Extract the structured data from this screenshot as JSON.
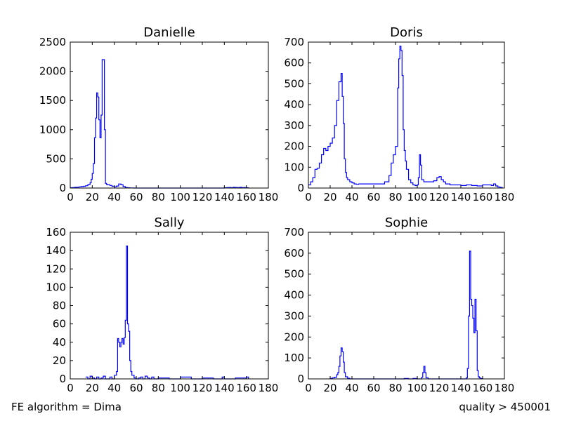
{
  "footer": {
    "left": "FE algorithm = Dima",
    "right": "quality > 450001"
  },
  "chart_data": [
    {
      "type": "line",
      "drawstyle": "steps",
      "color": "#0000ff",
      "title": "Danielle",
      "xlim": [
        0,
        180
      ],
      "ylim": [
        0,
        2500
      ],
      "xticks": [
        0,
        20,
        40,
        60,
        80,
        100,
        120,
        140,
        160,
        180
      ],
      "yticks": [
        0,
        500,
        1000,
        1500,
        2000,
        2500
      ],
      "x": [
        0,
        2,
        4,
        6,
        8,
        10,
        12,
        14,
        16,
        18,
        19,
        20,
        21,
        22,
        23,
        24,
        25,
        26,
        27,
        28,
        29,
        30,
        31,
        32,
        33,
        34,
        36,
        38,
        40,
        42,
        44,
        46,
        48,
        50,
        52,
        54,
        56,
        58,
        60,
        140,
        142,
        144,
        146,
        148,
        150,
        152,
        154,
        156,
        158,
        160,
        162
      ],
      "y": [
        5,
        8,
        12,
        15,
        20,
        25,
        30,
        40,
        60,
        90,
        150,
        250,
        420,
        860,
        1200,
        1630,
        1560,
        1170,
        860,
        1250,
        2200,
        2200,
        1000,
        80,
        60,
        55,
        45,
        30,
        20,
        35,
        70,
        55,
        25,
        10,
        5,
        3,
        2,
        0,
        0,
        5,
        8,
        10,
        6,
        12,
        10,
        8,
        12,
        6,
        10,
        5,
        0
      ]
    },
    {
      "type": "line",
      "drawstyle": "steps",
      "color": "#0000ff",
      "title": "Doris",
      "xlim": [
        0,
        180
      ],
      "ylim": [
        0,
        700
      ],
      "xticks": [
        0,
        20,
        40,
        60,
        80,
        100,
        120,
        140,
        160,
        180
      ],
      "yticks": [
        0,
        100,
        200,
        300,
        400,
        500,
        600,
        700
      ],
      "x": [
        0,
        2,
        4,
        6,
        8,
        10,
        12,
        14,
        16,
        18,
        20,
        22,
        24,
        26,
        28,
        29,
        30,
        31,
        32,
        33,
        34,
        35,
        36,
        38,
        40,
        42,
        44,
        46,
        50,
        55,
        60,
        65,
        70,
        74,
        76,
        78,
        80,
        82,
        83,
        84,
        85,
        86,
        87,
        88,
        89,
        90,
        92,
        94,
        96,
        98,
        100,
        101,
        102,
        103,
        104,
        106,
        110,
        115,
        118,
        120,
        122,
        124,
        126,
        130,
        135,
        140,
        145,
        150,
        155,
        160,
        165,
        168,
        170,
        172,
        174,
        176,
        178
      ],
      "y": [
        15,
        30,
        50,
        90,
        95,
        120,
        160,
        190,
        180,
        200,
        215,
        240,
        300,
        420,
        510,
        510,
        550,
        440,
        310,
        140,
        75,
        50,
        40,
        30,
        25,
        20,
        18,
        20,
        20,
        20,
        20,
        20,
        30,
        60,
        120,
        160,
        200,
        480,
        620,
        680,
        660,
        540,
        280,
        180,
        130,
        90,
        40,
        25,
        15,
        12,
        15,
        50,
        160,
        110,
        40,
        30,
        30,
        35,
        50,
        55,
        40,
        30,
        20,
        15,
        15,
        12,
        15,
        12,
        10,
        15,
        15,
        12,
        20,
        10,
        5,
        3,
        0
      ]
    },
    {
      "type": "line",
      "drawstyle": "steps",
      "color": "#0000ff",
      "title": "Sally",
      "xlim": [
        0,
        180
      ],
      "ylim": [
        0,
        160
      ],
      "xticks": [
        0,
        20,
        40,
        60,
        80,
        100,
        120,
        140,
        160,
        180
      ],
      "yticks": [
        0,
        20,
        40,
        60,
        80,
        100,
        120,
        140,
        160
      ],
      "x": [
        14,
        16,
        18,
        20,
        22,
        24,
        26,
        28,
        30,
        32,
        34,
        36,
        38,
        40,
        42,
        43,
        44,
        45,
        46,
        47,
        48,
        49,
        50,
        51,
        52,
        53,
        54,
        55,
        56,
        58,
        60,
        62,
        64,
        66,
        68,
        70,
        72,
        74,
        76,
        80,
        90,
        100,
        110,
        120,
        130,
        138,
        140,
        150,
        160,
        162
      ],
      "y": [
        2,
        0,
        3,
        1,
        0,
        2,
        0,
        1,
        3,
        0,
        0,
        2,
        0,
        4,
        8,
        44,
        40,
        35,
        40,
        44,
        38,
        45,
        64,
        145,
        60,
        52,
        20,
        8,
        4,
        1,
        0,
        1,
        2,
        0,
        3,
        1,
        0,
        2,
        0,
        1,
        0,
        2,
        0,
        1,
        0,
        2,
        0,
        1,
        2,
        0
      ]
    },
    {
      "type": "line",
      "drawstyle": "steps",
      "color": "#0000ff",
      "title": "Sophie",
      "xlim": [
        0,
        180
      ],
      "ylim": [
        0,
        700
      ],
      "xticks": [
        0,
        20,
        40,
        60,
        80,
        100,
        120,
        140,
        160,
        180
      ],
      "yticks": [
        0,
        100,
        200,
        300,
        400,
        500,
        600,
        700
      ],
      "x": [
        20,
        22,
        24,
        26,
        27,
        28,
        29,
        30,
        31,
        32,
        33,
        34,
        36,
        38,
        88,
        92,
        96,
        100,
        104,
        105,
        106,
        107,
        108,
        110,
        145,
        146,
        147,
        148,
        149,
        150,
        151,
        152,
        153,
        154,
        155,
        156,
        157,
        158,
        160
      ],
      "y": [
        2,
        5,
        8,
        20,
        30,
        60,
        110,
        148,
        130,
        80,
        30,
        10,
        3,
        0,
        2,
        0,
        2,
        0,
        8,
        30,
        60,
        30,
        5,
        0,
        5,
        50,
        300,
        610,
        380,
        350,
        290,
        220,
        380,
        230,
        40,
        10,
        5,
        2,
        0
      ]
    }
  ]
}
